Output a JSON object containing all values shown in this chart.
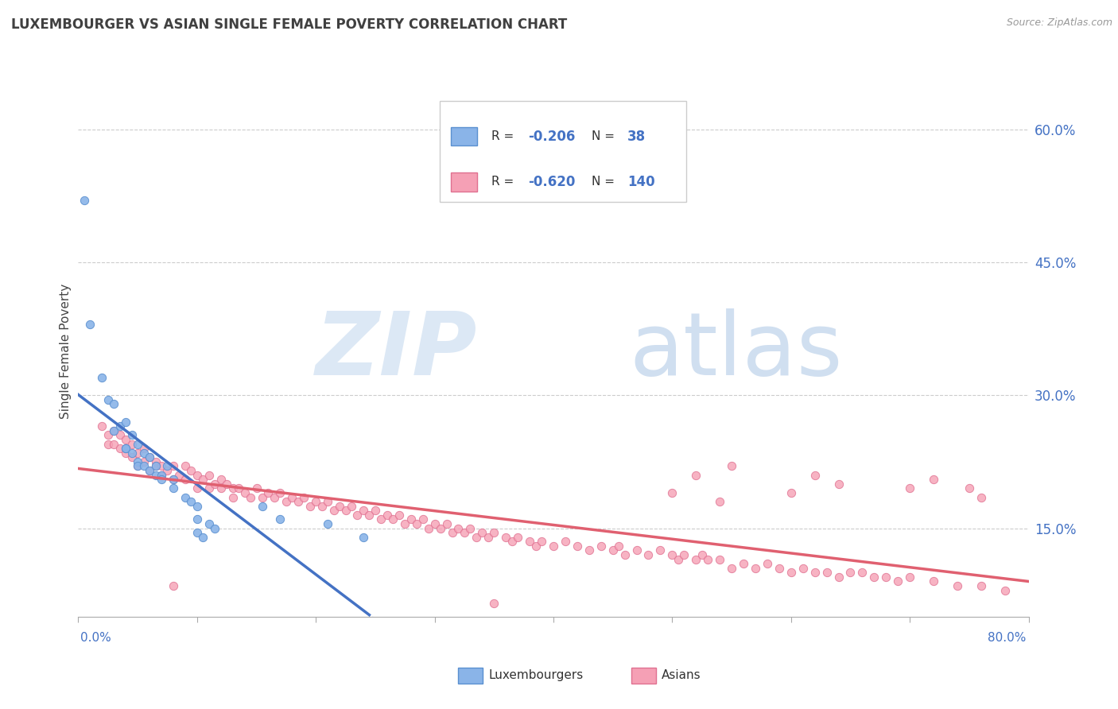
{
  "title": "LUXEMBOURGER VS ASIAN SINGLE FEMALE POVERTY CORRELATION CHART",
  "source": "Source: ZipAtlas.com",
  "ylabel": "Single Female Poverty",
  "yaxis_ticks": [
    0.15,
    0.3,
    0.45,
    0.6
  ],
  "yaxis_labels": [
    "15.0%",
    "30.0%",
    "45.0%",
    "60.0%"
  ],
  "xlim": [
    0.0,
    0.8
  ],
  "ylim": [
    0.05,
    0.65
  ],
  "lux_color": "#8ab4e8",
  "lux_edge_color": "#5a90d0",
  "asian_color": "#f5a0b5",
  "asian_edge_color": "#e07090",
  "trend_blue": "#4472c4",
  "trend_pink": "#e06070",
  "trend_dashed": "#a0b8d8",
  "lux_data": [
    [
      0.005,
      0.52
    ],
    [
      0.01,
      0.38
    ],
    [
      0.02,
      0.32
    ],
    [
      0.025,
      0.295
    ],
    [
      0.03,
      0.26
    ],
    [
      0.03,
      0.29
    ],
    [
      0.035,
      0.265
    ],
    [
      0.04,
      0.27
    ],
    [
      0.04,
      0.24
    ],
    [
      0.04,
      0.24
    ],
    [
      0.045,
      0.255
    ],
    [
      0.045,
      0.235
    ],
    [
      0.05,
      0.245
    ],
    [
      0.05,
      0.225
    ],
    [
      0.05,
      0.22
    ],
    [
      0.055,
      0.235
    ],
    [
      0.055,
      0.22
    ],
    [
      0.06,
      0.23
    ],
    [
      0.06,
      0.215
    ],
    [
      0.065,
      0.22
    ],
    [
      0.065,
      0.21
    ],
    [
      0.07,
      0.21
    ],
    [
      0.07,
      0.205
    ],
    [
      0.075,
      0.22
    ],
    [
      0.08,
      0.205
    ],
    [
      0.08,
      0.195
    ],
    [
      0.09,
      0.185
    ],
    [
      0.095,
      0.18
    ],
    [
      0.1,
      0.175
    ],
    [
      0.1,
      0.16
    ],
    [
      0.1,
      0.145
    ],
    [
      0.105,
      0.14
    ],
    [
      0.11,
      0.155
    ],
    [
      0.115,
      0.15
    ],
    [
      0.155,
      0.175
    ],
    [
      0.17,
      0.16
    ],
    [
      0.21,
      0.155
    ],
    [
      0.24,
      0.14
    ]
  ],
  "asian_data": [
    [
      0.02,
      0.265
    ],
    [
      0.025,
      0.255
    ],
    [
      0.025,
      0.245
    ],
    [
      0.03,
      0.26
    ],
    [
      0.03,
      0.245
    ],
    [
      0.035,
      0.255
    ],
    [
      0.035,
      0.24
    ],
    [
      0.04,
      0.25
    ],
    [
      0.04,
      0.235
    ],
    [
      0.045,
      0.245
    ],
    [
      0.045,
      0.23
    ],
    [
      0.05,
      0.235
    ],
    [
      0.05,
      0.22
    ],
    [
      0.055,
      0.24
    ],
    [
      0.055,
      0.225
    ],
    [
      0.06,
      0.23
    ],
    [
      0.06,
      0.215
    ],
    [
      0.065,
      0.225
    ],
    [
      0.065,
      0.22
    ],
    [
      0.07,
      0.22
    ],
    [
      0.07,
      0.21
    ],
    [
      0.075,
      0.215
    ],
    [
      0.08,
      0.22
    ],
    [
      0.08,
      0.205
    ],
    [
      0.085,
      0.21
    ],
    [
      0.09,
      0.22
    ],
    [
      0.09,
      0.205
    ],
    [
      0.095,
      0.215
    ],
    [
      0.1,
      0.21
    ],
    [
      0.1,
      0.195
    ],
    [
      0.105,
      0.205
    ],
    [
      0.11,
      0.21
    ],
    [
      0.11,
      0.195
    ],
    [
      0.115,
      0.2
    ],
    [
      0.12,
      0.205
    ],
    [
      0.12,
      0.195
    ],
    [
      0.125,
      0.2
    ],
    [
      0.13,
      0.195
    ],
    [
      0.13,
      0.185
    ],
    [
      0.135,
      0.195
    ],
    [
      0.14,
      0.19
    ],
    [
      0.145,
      0.185
    ],
    [
      0.15,
      0.195
    ],
    [
      0.155,
      0.185
    ],
    [
      0.16,
      0.19
    ],
    [
      0.165,
      0.185
    ],
    [
      0.17,
      0.19
    ],
    [
      0.175,
      0.18
    ],
    [
      0.18,
      0.185
    ],
    [
      0.185,
      0.18
    ],
    [
      0.19,
      0.185
    ],
    [
      0.195,
      0.175
    ],
    [
      0.2,
      0.18
    ],
    [
      0.205,
      0.175
    ],
    [
      0.21,
      0.18
    ],
    [
      0.215,
      0.17
    ],
    [
      0.22,
      0.175
    ],
    [
      0.225,
      0.17
    ],
    [
      0.23,
      0.175
    ],
    [
      0.235,
      0.165
    ],
    [
      0.24,
      0.17
    ],
    [
      0.245,
      0.165
    ],
    [
      0.25,
      0.17
    ],
    [
      0.255,
      0.16
    ],
    [
      0.26,
      0.165
    ],
    [
      0.265,
      0.16
    ],
    [
      0.27,
      0.165
    ],
    [
      0.275,
      0.155
    ],
    [
      0.28,
      0.16
    ],
    [
      0.285,
      0.155
    ],
    [
      0.29,
      0.16
    ],
    [
      0.295,
      0.15
    ],
    [
      0.3,
      0.155
    ],
    [
      0.305,
      0.15
    ],
    [
      0.31,
      0.155
    ],
    [
      0.315,
      0.145
    ],
    [
      0.32,
      0.15
    ],
    [
      0.325,
      0.145
    ],
    [
      0.33,
      0.15
    ],
    [
      0.335,
      0.14
    ],
    [
      0.34,
      0.145
    ],
    [
      0.345,
      0.14
    ],
    [
      0.35,
      0.145
    ],
    [
      0.36,
      0.14
    ],
    [
      0.365,
      0.135
    ],
    [
      0.37,
      0.14
    ],
    [
      0.38,
      0.135
    ],
    [
      0.385,
      0.13
    ],
    [
      0.39,
      0.135
    ],
    [
      0.4,
      0.13
    ],
    [
      0.41,
      0.135
    ],
    [
      0.42,
      0.13
    ],
    [
      0.43,
      0.125
    ],
    [
      0.44,
      0.13
    ],
    [
      0.45,
      0.125
    ],
    [
      0.455,
      0.13
    ],
    [
      0.46,
      0.12
    ],
    [
      0.47,
      0.125
    ],
    [
      0.48,
      0.12
    ],
    [
      0.49,
      0.125
    ],
    [
      0.5,
      0.12
    ],
    [
      0.505,
      0.115
    ],
    [
      0.51,
      0.12
    ],
    [
      0.52,
      0.115
    ],
    [
      0.525,
      0.12
    ],
    [
      0.53,
      0.115
    ],
    [
      0.54,
      0.115
    ],
    [
      0.55,
      0.105
    ],
    [
      0.56,
      0.11
    ],
    [
      0.57,
      0.105
    ],
    [
      0.58,
      0.11
    ],
    [
      0.59,
      0.105
    ],
    [
      0.6,
      0.1
    ],
    [
      0.61,
      0.105
    ],
    [
      0.62,
      0.1
    ],
    [
      0.63,
      0.1
    ],
    [
      0.64,
      0.095
    ],
    [
      0.65,
      0.1
    ],
    [
      0.66,
      0.1
    ],
    [
      0.67,
      0.095
    ],
    [
      0.68,
      0.095
    ],
    [
      0.69,
      0.09
    ],
    [
      0.7,
      0.095
    ],
    [
      0.72,
      0.09
    ],
    [
      0.74,
      0.085
    ],
    [
      0.76,
      0.085
    ],
    [
      0.78,
      0.08
    ],
    [
      0.08,
      0.085
    ],
    [
      0.35,
      0.065
    ],
    [
      0.5,
      0.19
    ],
    [
      0.52,
      0.21
    ],
    [
      0.54,
      0.18
    ],
    [
      0.55,
      0.22
    ],
    [
      0.6,
      0.19
    ],
    [
      0.62,
      0.21
    ],
    [
      0.64,
      0.2
    ],
    [
      0.7,
      0.195
    ],
    [
      0.72,
      0.205
    ],
    [
      0.75,
      0.195
    ],
    [
      0.76,
      0.185
    ]
  ]
}
